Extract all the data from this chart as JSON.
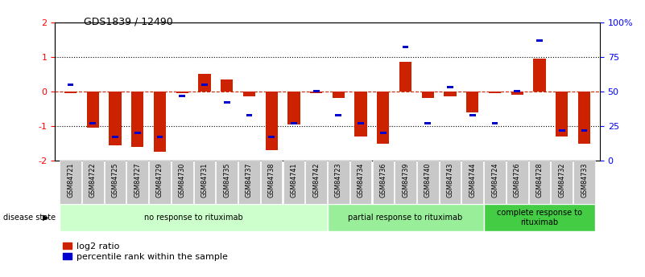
{
  "title": "GDS1839 / 12490",
  "samples": [
    "GSM84721",
    "GSM84722",
    "GSM84725",
    "GSM84727",
    "GSM84729",
    "GSM84730",
    "GSM84731",
    "GSM84735",
    "GSM84737",
    "GSM84738",
    "GSM84741",
    "GSM84742",
    "GSM84723",
    "GSM84734",
    "GSM84736",
    "GSM84739",
    "GSM84740",
    "GSM84743",
    "GSM84744",
    "GSM84724",
    "GSM84726",
    "GSM84728",
    "GSM84732",
    "GSM84733"
  ],
  "log2_ratio": [
    -0.05,
    -1.05,
    -1.55,
    -1.6,
    -1.75,
    -0.05,
    0.5,
    0.35,
    -0.15,
    -1.7,
    -0.95,
    -0.05,
    -0.2,
    -1.3,
    -1.5,
    0.85,
    -0.2,
    -0.15,
    -0.6,
    -0.05,
    -0.1,
    0.95,
    -1.3,
    -1.5
  ],
  "percentile": [
    55,
    27,
    17,
    20,
    17,
    47,
    55,
    42,
    33,
    17,
    27,
    50,
    33,
    27,
    20,
    82,
    27,
    53,
    33,
    27,
    50,
    87,
    22,
    22
  ],
  "groups": [
    {
      "label": "no response to rituximab",
      "start": 0,
      "end": 11,
      "color": "#ccffcc"
    },
    {
      "label": "partial response to rituximab",
      "start": 12,
      "end": 18,
      "color": "#99ee99"
    },
    {
      "label": "complete response to\nrituximab",
      "start": 19,
      "end": 23,
      "color": "#44cc44"
    }
  ],
  "bar_color_red": "#cc2200",
  "bar_color_blue": "#0000cc",
  "ylim_left": [
    -2,
    2
  ],
  "ylim_right": [
    0,
    100
  ],
  "yticks_left": [
    -2,
    -1,
    0,
    1,
    2
  ],
  "yticks_right": [
    0,
    25,
    50,
    75,
    100
  ],
  "ytick_labels_right": [
    "0",
    "25",
    "50",
    "75",
    "100%"
  ],
  "dotted_lines": [
    -1,
    1
  ],
  "bar_width": 0.55,
  "disease_state_label": "disease state",
  "legend_items": [
    "log2 ratio",
    "percentile rank within the sample"
  ]
}
